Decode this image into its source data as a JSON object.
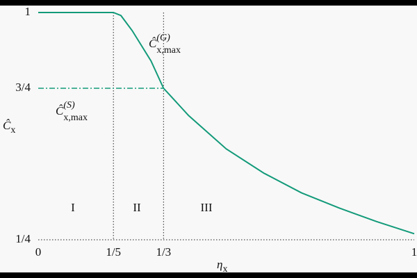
{
  "chart_data": {
    "type": "line",
    "x": [
      0,
      0.2,
      0.22,
      0.25,
      0.3,
      0.3333,
      0.4,
      0.5,
      0.6,
      0.7,
      0.8,
      0.9,
      1
    ],
    "series": [
      {
        "name": "Ĉ(G)x,max",
        "color": "#129a79",
        "values": [
          1,
          1,
          0.99,
          0.94,
          0.84,
          0.75,
          0.66,
          0.55,
          0.47,
          0.405,
          0.355,
          0.31,
          0.27
        ]
      }
    ],
    "xlim": [
      0,
      1
    ],
    "ylim": [
      0.25,
      1
    ],
    "xticks": [
      0,
      {
        "value": 0.2,
        "label": "1/5"
      },
      {
        "value": 0.3333,
        "label": "1/3"
      },
      1
    ],
    "yticks": [
      {
        "value": 0.25,
        "label": "1/4"
      },
      {
        "value": 0.75,
        "label": "3/4"
      },
      1
    ],
    "x_label": {
      "base": "η",
      "sub": "x"
    },
    "y_label": {
      "base": "Ĉ",
      "sub": "x"
    },
    "annotations": [
      {
        "base": "Ĉ",
        "sub": "x,max",
        "sup": "(G)"
      },
      {
        "base": "Ĉ",
        "sub": "x,max",
        "sup": "(S)"
      }
    ],
    "regions": [
      "I",
      "II",
      "III"
    ]
  }
}
